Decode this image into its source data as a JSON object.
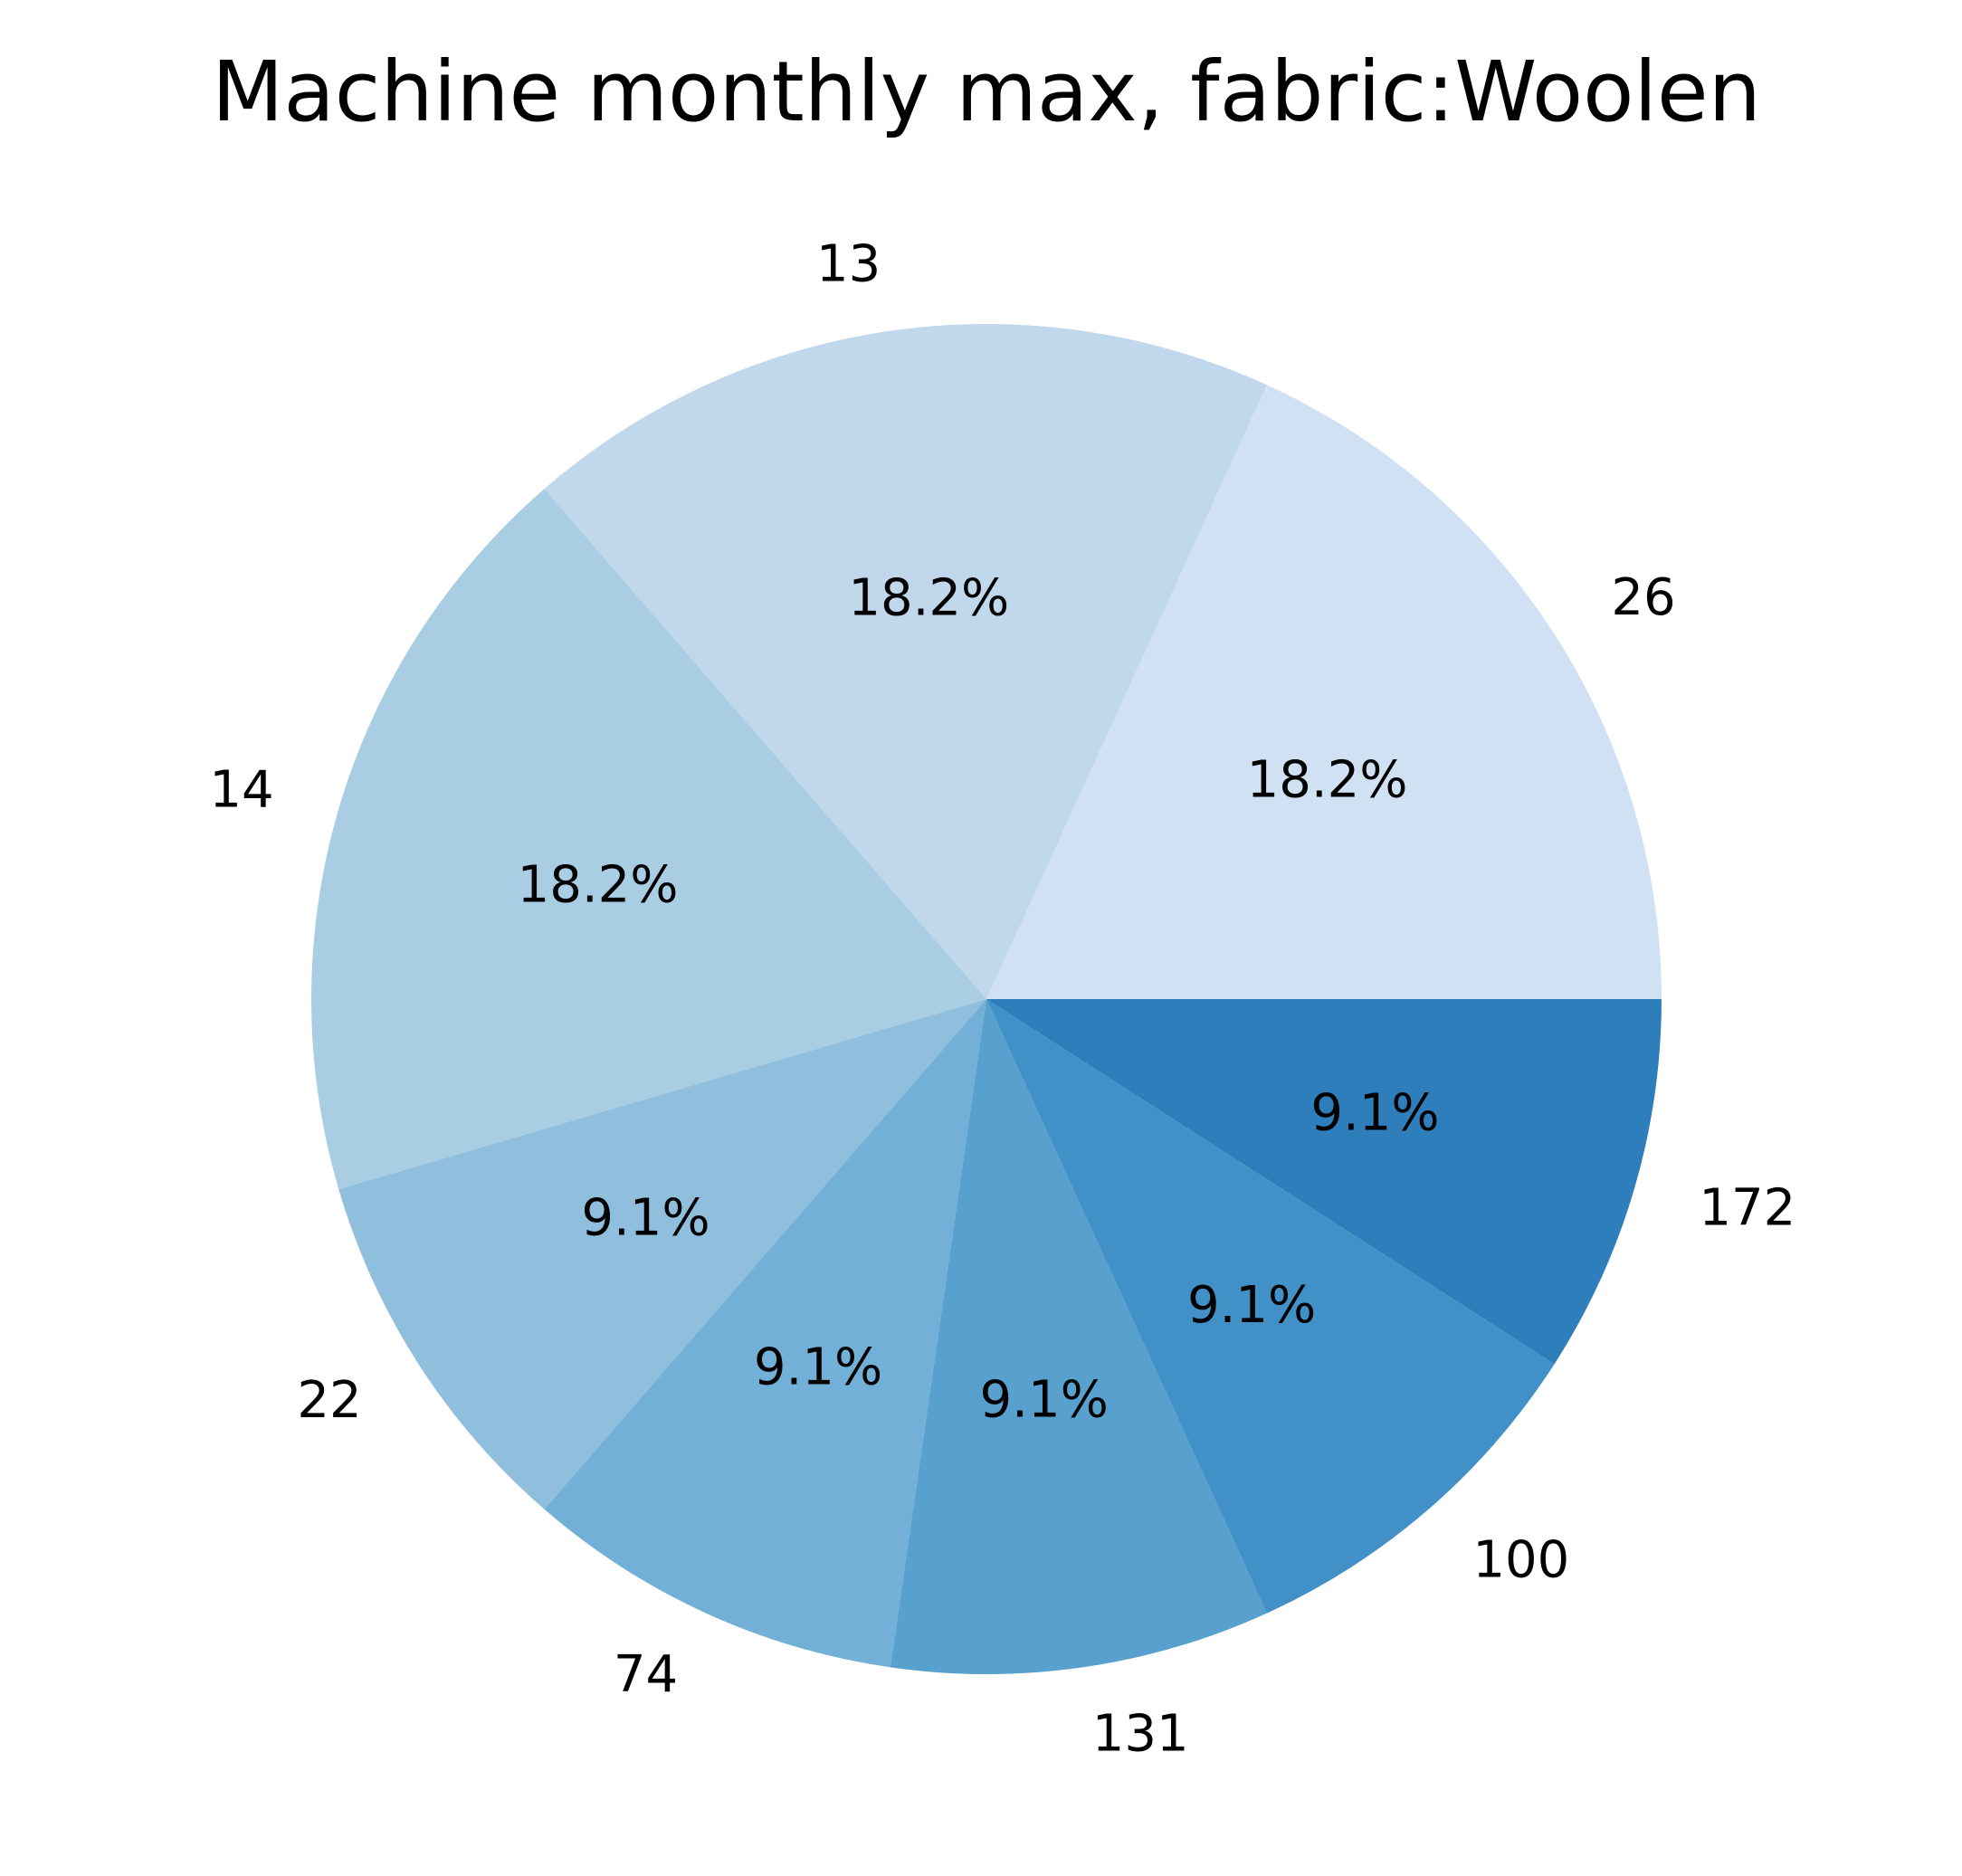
{
  "chart_data": {
    "type": "pie",
    "title": "Machine monthly max, fabric:Woolen",
    "labels": [
      "26",
      "13",
      "14",
      "22",
      "74",
      "131",
      "100",
      "172"
    ],
    "values": [
      2,
      2,
      2,
      1,
      1,
      1,
      1,
      1
    ],
    "percent_labels": [
      "18.2%",
      "18.2%",
      "18.2%",
      "9.1%",
      "9.1%",
      "9.1%",
      "9.1%",
      "9.1%"
    ],
    "colors": [
      "#cfe1f2",
      "#c0d7ec",
      "#a9cee4",
      "#8fbfdd",
      "#72b0d7",
      "#58a1cf",
      "#4190c7",
      "#2f7ebc"
    ],
    "start_angle_deg": 0,
    "direction": "counterclockwise"
  }
}
